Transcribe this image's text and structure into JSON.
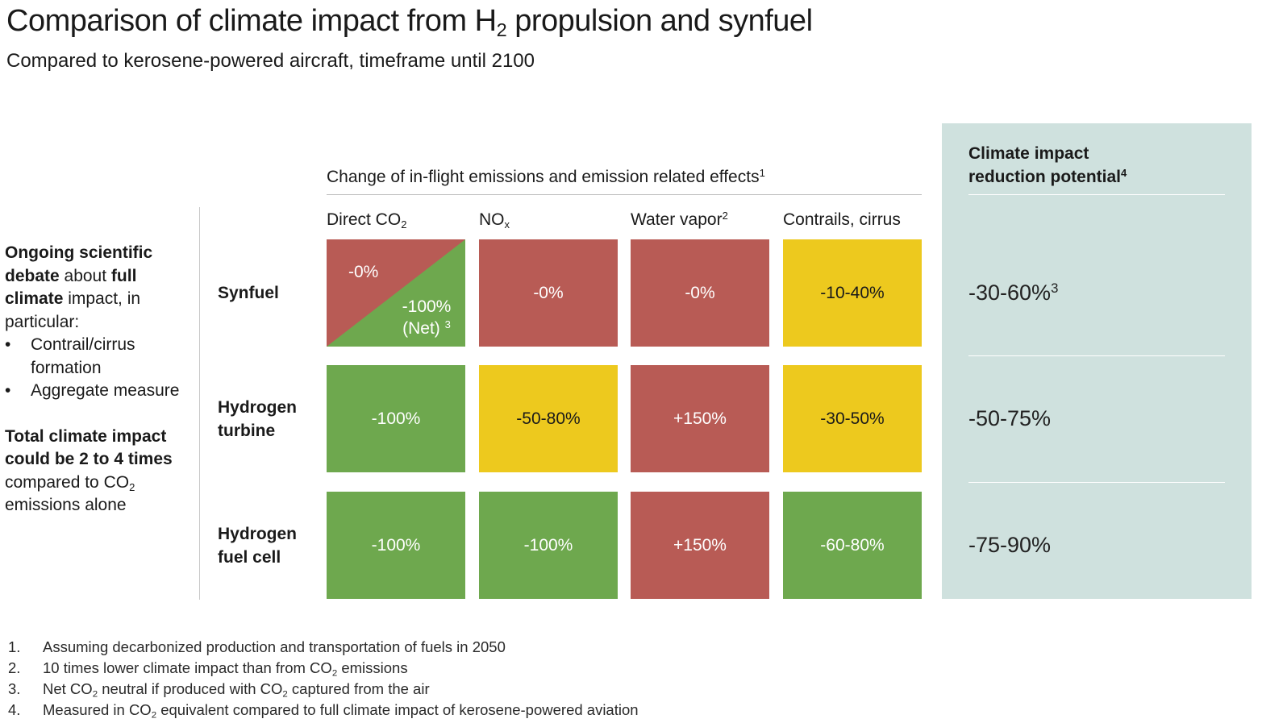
{
  "title": {
    "pre": "Comparison of climate impact from H",
    "sub": "2",
    "post": " propulsion and synfuel"
  },
  "subtitle": "Compared to kerosene-powered aircraft, timeframe until 2100",
  "side_note": {
    "p1_b1": "Ongoing scientific debate",
    "p1_t1": " about ",
    "p1_b2": "full climate",
    "p1_t2": " impact, in particular:",
    "bullets": [
      "Contrail/cirrus formation",
      "Aggregate measure"
    ],
    "p2_b": "Total climate impact could be 2 to 4 times",
    "p2_t_pre": " compared to CO",
    "p2_t_sub": "2",
    "p2_t_post": " emissions alone"
  },
  "section_header": {
    "text": "Change of in-flight emissions and emission related effects",
    "sup": "1"
  },
  "columns": {
    "co2": {
      "pre": "Direct CO",
      "sub": "2"
    },
    "nox": {
      "pre": "NO",
      "sub": "x"
    },
    "water": {
      "pre": "Water vapor",
      "sup": "2"
    },
    "contrails": {
      "pre": "Contrails, cirrus"
    }
  },
  "rows": {
    "synfuel": "Synfuel",
    "h2_turbine": "Hydrogen turbine",
    "h2_fuel_cell": "Hydrogen fuel cell"
  },
  "cells": {
    "synfuel": {
      "co2_upper": "-0%",
      "co2_lower_value": "-100%",
      "co2_lower_note": "(Net)",
      "co2_lower_sup": "3",
      "nox": "-0%",
      "water": "-0%",
      "contrails": "-10-40%"
    },
    "h2_turbine": {
      "co2": "-100%",
      "nox": "-50-80%",
      "water": "+150%",
      "contrails": "-30-50%"
    },
    "h2_fuel_cell": {
      "co2": "-100%",
      "nox": "-100%",
      "water": "+150%",
      "contrails": "-60-80%"
    }
  },
  "panel": {
    "title_line1": "Climate impact",
    "title_line2": "reduction potential",
    "title_sup": "4",
    "values": {
      "synfuel": {
        "value": "-30-60%",
        "sup": "3"
      },
      "h2_turbine": {
        "value": "-50-75%"
      },
      "h2_fuel_cell": {
        "value": "-75-90%"
      }
    }
  },
  "footnotes": [
    {
      "num": "1.",
      "text": "Assuming decarbonized production and transportation of fuels in 2050"
    },
    {
      "num": "2.",
      "pre": "10 times lower climate impact than from CO",
      "sub": "2",
      "post": " emissions"
    },
    {
      "num": "3.",
      "pre": "Net CO",
      "sub": "2",
      "post": " neutral if produced with CO",
      "sub2": "2",
      "post2": " captured from the air"
    },
    {
      "num": "4.",
      "pre": "Measured in CO",
      "sub": "2",
      "post": " equivalent compared to full climate impact of kerosene-powered aviation"
    }
  ],
  "chart_data": {
    "type": "table",
    "title": "Comparison of climate impact from H2 propulsion and synfuel",
    "subtitle": "Compared to kerosene-powered aircraft, timeframe until 2100",
    "columns": [
      "Direct CO2",
      "NOx",
      "Water vapor",
      "Contrails, cirrus",
      "Climate impact reduction potential"
    ],
    "rows": [
      {
        "name": "Synfuel",
        "values": [
          "-0% / -100% (Net)",
          "-0%",
          "-0%",
          "-10-40%",
          "-30-60%"
        ]
      },
      {
        "name": "Hydrogen turbine",
        "values": [
          "-100%",
          "-50-80%",
          "+150%",
          "-30-50%",
          "-50-75%"
        ]
      },
      {
        "name": "Hydrogen fuel cell",
        "values": [
          "-100%",
          "-100%",
          "+150%",
          "-60-80%",
          "-75-90%"
        ]
      }
    ],
    "colors": {
      "red": "#b85b55",
      "green": "#6ea84e",
      "yellow": "#edc91e",
      "panel": "#cfe1de"
    }
  }
}
